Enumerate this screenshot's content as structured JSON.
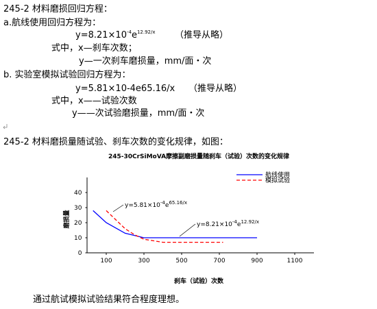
{
  "document": {
    "line1": "245-2 材料磨损回归方程：",
    "line2": "a.航线使用回归方程为：",
    "formula_a": [
      "y=8.21×10",
      "-4",
      "e",
      "12.92/x"
    ],
    "note_a": "（推导从略）",
    "line4": "式中，x—刹车次数；",
    "line5": "y—一次刹车磨损量，mm/面・次",
    "line6": "b. 实验室模拟试验回归方程为：",
    "line7": "y=5.81×10-4e65.16/x",
    "note_b": "（推导从略）",
    "line8": "式中，x——试验次数",
    "line9": "y——次试验磨损量，mm/面・次",
    "line11": "245-2 材料磨损量随试验、刹车次数的变化规律，如图：",
    "conclusion": "通过航试模拟试验结果符合程度理想。"
  },
  "chart_data": {
    "type": "line",
    "title": "245-30CrSiMoVA摩擦副磨损量随刹车（试验）次数的变化规律",
    "x_label": "刹车（试验）次数",
    "y_label": "磨损量",
    "xlim": [
      0,
      1200
    ],
    "xticks": [
      100,
      300,
      500,
      700,
      900,
      1100
    ],
    "ylim": [
      0,
      50
    ],
    "yticks": [
      0,
      10,
      20,
      30,
      40
    ],
    "legend": "upper right",
    "series": [
      {
        "name": "航线使用",
        "color": "#0000ff",
        "line_style": "solid",
        "x": [
          30,
          100,
          200,
          300,
          400,
          500,
          600,
          700,
          800,
          900
        ],
        "values": [
          28,
          20,
          13,
          10,
          10,
          10,
          10,
          10,
          10,
          10
        ]
      },
      {
        "name": "模拟试验",
        "color": "#ff0000",
        "line_style": "dashed",
        "x": [
          100,
          150,
          200,
          250,
          300,
          350,
          400,
          500,
          600,
          720
        ],
        "values": [
          28,
          22,
          16,
          12,
          9,
          8,
          7,
          7,
          7,
          7
        ]
      }
    ],
    "annotations": [
      [
        "y=5.81×10",
        "-4",
        "e",
        "65.16/x"
      ],
      [
        "y=8.21×10",
        "-4",
        "e",
        "12.92/x"
      ]
    ]
  }
}
